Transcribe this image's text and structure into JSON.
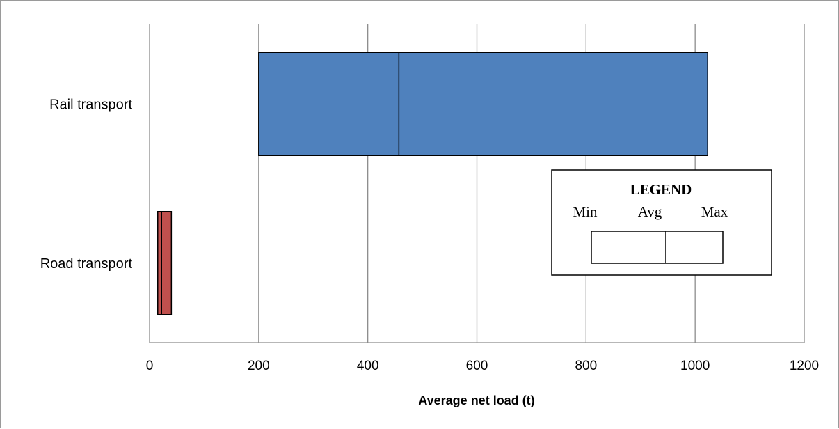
{
  "chart_data": {
    "type": "bar",
    "orientation": "horizontal",
    "subtype": "floating-range (min-avg-max)",
    "categories": [
      "Rail transport",
      "Road transport"
    ],
    "series": [
      {
        "category": "Rail transport",
        "min": 200,
        "avg": 457,
        "max": 1023,
        "color": "#4f81bd"
      },
      {
        "category": "Road transport",
        "min": 15,
        "avg": 22,
        "max": 40,
        "color": "#c0504d"
      }
    ],
    "xlabel": "Average net load (t)",
    "ylabel": "",
    "xlim": [
      0,
      1200
    ],
    "xticks": [
      "0",
      "200",
      "400",
      "600",
      "800",
      "1000",
      "1200"
    ],
    "grid": "vertical gridlines",
    "legend": {
      "title": "LEGEND",
      "labels": [
        "Min",
        "Avg",
        "Max"
      ],
      "placement": "bottom-right"
    }
  }
}
